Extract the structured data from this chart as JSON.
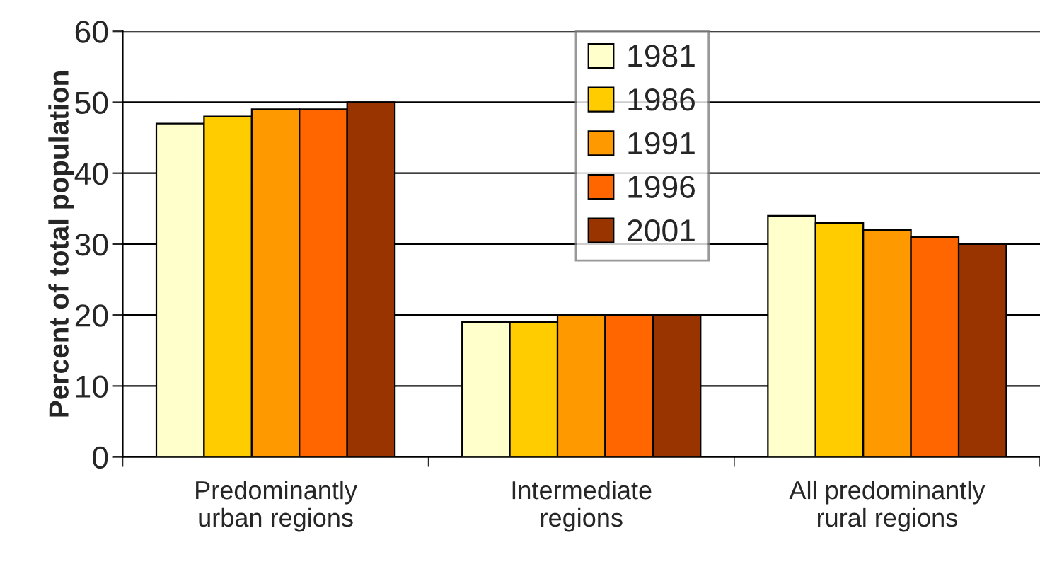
{
  "chart_data": {
    "type": "bar",
    "ylabel": "Percent of total population",
    "categories": [
      "Predominantly\nurban regions",
      "Intermediate\nregions",
      "All predominantly\nrural regions"
    ],
    "series": [
      {
        "name": "1981",
        "color": "#ffffcc",
        "values": [
          47,
          19,
          34
        ]
      },
      {
        "name": "1986",
        "color": "#ffcc00",
        "values": [
          48,
          19,
          33
        ]
      },
      {
        "name": "1991",
        "color": "#ff9900",
        "values": [
          49,
          20,
          32
        ]
      },
      {
        "name": "1996",
        "color": "#ff6600",
        "values": [
          49,
          20,
          31
        ]
      },
      {
        "name": "2001",
        "color": "#993300",
        "values": [
          50,
          20,
          30
        ]
      }
    ],
    "ylim": [
      0,
      60
    ],
    "yticks": [
      0,
      10,
      20,
      30,
      40,
      50,
      60
    ],
    "grid": "y",
    "legend": "top"
  }
}
